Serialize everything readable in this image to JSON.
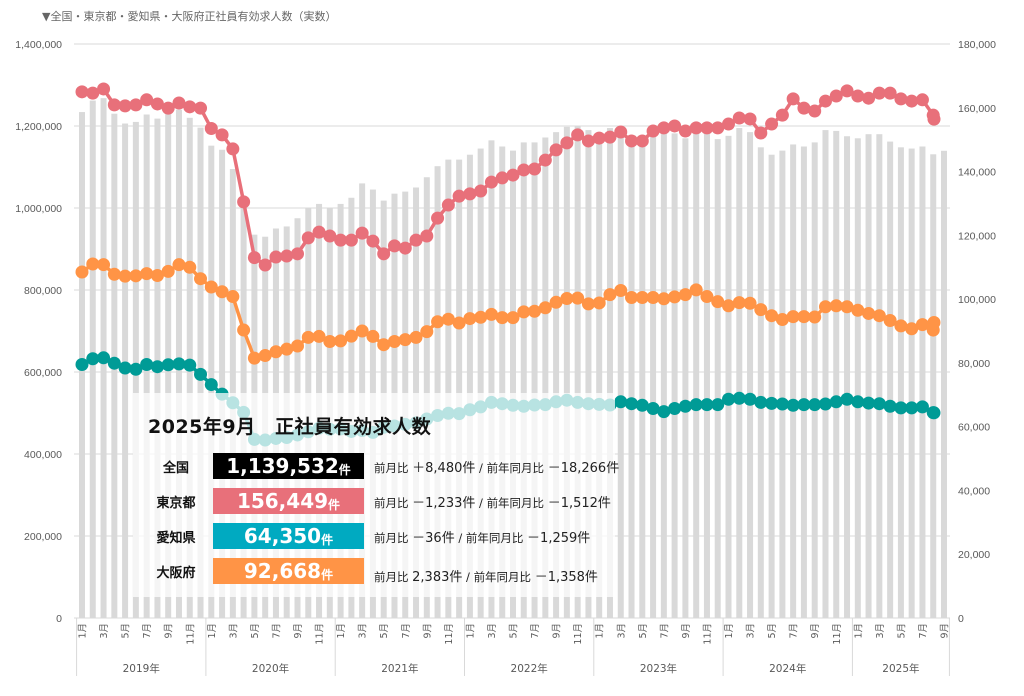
{
  "title": "▼全国・東京都・愛知県・大阪府正社員有効求人数（実数）",
  "colors": {
    "national": "#d9d9d9",
    "tokyo": "#e8707a",
    "aichi": "#009b96",
    "aichi_faded": "#b0dedc",
    "osaka": "#ff9446",
    "national_box": "#000000",
    "tokyo_box": "#e8707a",
    "aichi_box": "#00aac1",
    "osaka_box": "#ff9446",
    "grid": "#d9d9d9"
  },
  "summary": {
    "heading": "2025年9月　正社員有効求人数",
    "rows": [
      {
        "region": "全国",
        "value": "1,139,532",
        "unit": "件",
        "mom_label": "前月比",
        "mom": "＋8,480件",
        "sep": "/",
        "yoy_label": "前年同月比",
        "yoy": "－18,266件"
      },
      {
        "region": "東京都",
        "value": "156,449",
        "unit": "件",
        "mom_label": "前月比",
        "mom": "－1,233件",
        "sep": "/",
        "yoy_label": "前年同月比",
        "yoy": "－1,512件"
      },
      {
        "region": "愛知県",
        "value": "64,350",
        "unit": "件",
        "mom_label": "前月比",
        "mom": "－36件",
        "sep": "/",
        "yoy_label": "前年同月比",
        "yoy": "－1,259件"
      },
      {
        "region": "大阪府",
        "value": "92,668",
        "unit": "件",
        "mom_label": "前月比",
        "mom": "2,383件",
        "sep": "/",
        "yoy_label": "前年同月比",
        "yoy": "－1,358件"
      }
    ]
  },
  "chart_data": {
    "type": "bar+line",
    "title": "▼全国・東京都・愛知県・大阪府正社員有効求人数（実数）",
    "y_left": {
      "min": 0,
      "max": 1400000,
      "step": 200000,
      "ticks": [
        "0",
        "200,000",
        "400,000",
        "600,000",
        "800,000",
        "1,000,000",
        "1,200,000",
        "1,400,000"
      ]
    },
    "y_right": {
      "min": 0,
      "max": 180000,
      "step": 20000,
      "ticks": [
        "0",
        "20,000",
        "40,000",
        "60,000",
        "80,000",
        "100,000",
        "120,000",
        "140,000",
        "160,000",
        "180,000"
      ]
    },
    "grid": true,
    "years": [
      "2019年",
      "2020年",
      "2021年",
      "2022年",
      "2023年",
      "2024年",
      "2025年"
    ],
    "month_tick_labels": [
      "1月",
      "3月",
      "5月",
      "7月",
      "9月",
      "11月"
    ],
    "month_tick_labels_2025": [
      "1月",
      "3月",
      "5月",
      "7月",
      "9月"
    ],
    "months_count": 81,
    "series": [
      {
        "name": "全国",
        "axis": "left",
        "kind": "bar",
        "values": [
          1234000,
          1262000,
          1268000,
          1230000,
          1206000,
          1210000,
          1228000,
          1218000,
          1232000,
          1240000,
          1220000,
          1196000,
          1152000,
          1142000,
          1095000,
          1000000,
          935000,
          930000,
          950000,
          955000,
          975000,
          1000000,
          1010000,
          1000000,
          1010000,
          1025000,
          1060000,
          1045000,
          1018000,
          1035000,
          1040000,
          1050000,
          1075000,
          1102000,
          1118000,
          1118000,
          1130000,
          1145000,
          1165000,
          1150000,
          1140000,
          1160000,
          1160000,
          1172000,
          1185000,
          1198000,
          1200000,
          1190000,
          1182000,
          1195000,
          1185000,
          1160000,
          1170000,
          1185000,
          1190000,
          1182000,
          1170000,
          1186000,
          1188000,
          1168000,
          1176000,
          1195000,
          1185000,
          1148000,
          1130000,
          1140000,
          1155000,
          1150000,
          1160000,
          1190000,
          1188000,
          1175000,
          1170000,
          1180000,
          1180000,
          1162000,
          1148000,
          1145000,
          1150000,
          1131000,
          1139532
        ]
      },
      {
        "name": "東京都",
        "axis": "right",
        "kind": "line",
        "values": [
          165000,
          164600,
          165900,
          160900,
          160600,
          160900,
          162500,
          161200,
          159900,
          161500,
          160300,
          159900,
          153500,
          151500,
          147100,
          130500,
          113000,
          110700,
          113200,
          113500,
          114200,
          119200,
          121000,
          119800,
          118500,
          118500,
          120700,
          118200,
          114200,
          116700,
          116000,
          118500,
          119800,
          125400,
          129500,
          132300,
          133000,
          133900,
          136700,
          138000,
          138900,
          140500,
          140800,
          143600,
          146800,
          149000,
          151500,
          149600,
          150500,
          150800,
          152400,
          149600,
          149600,
          152700,
          153700,
          154300,
          152700,
          153700,
          153700,
          153700,
          154900,
          156800,
          156500,
          152100,
          154900,
          157700,
          162800,
          159900,
          159000,
          162100,
          163700,
          165300,
          163700,
          163000,
          164600,
          164600,
          162800,
          162100,
          162500,
          157682,
          156449
        ]
      },
      {
        "name": "愛知県",
        "axis": "right",
        "kind": "line",
        "values": [
          79500,
          81300,
          81600,
          79900,
          78400,
          78000,
          79500,
          78800,
          79400,
          79700,
          79300,
          76400,
          73200,
          70200,
          67500,
          64500,
          56000,
          55800,
          56300,
          56600,
          57400,
          58400,
          59500,
          59200,
          59300,
          58500,
          58800,
          58200,
          59800,
          60200,
          60700,
          61200,
          62400,
          63500,
          64200,
          64100,
          65300,
          66200,
          67600,
          67200,
          66700,
          66400,
          66800,
          66900,
          67800,
          68300,
          67600,
          67200,
          67000,
          66800,
          67800,
          67200,
          66700,
          65700,
          64700,
          65700,
          66400,
          66900,
          66900,
          66900,
          68600,
          68900,
          68600,
          67600,
          67300,
          67100,
          66700,
          66900,
          66900,
          67100,
          67800,
          68600,
          67800,
          67400,
          67200,
          66400,
          65900,
          65900,
          66200,
          64386,
          64350
        ]
      },
      {
        "name": "大阪府",
        "axis": "right",
        "kind": "line",
        "values": [
          108500,
          111000,
          110800,
          107800,
          107200,
          107300,
          108000,
          107400,
          108700,
          110800,
          110000,
          106400,
          103800,
          102300,
          100800,
          90300,
          81500,
          82300,
          83500,
          84300,
          85300,
          88000,
          88300,
          86700,
          86900,
          88400,
          90000,
          88300,
          85700,
          86700,
          87300,
          88000,
          89800,
          92900,
          93700,
          92500,
          93900,
          94300,
          95200,
          94200,
          94200,
          96000,
          96200,
          97300,
          99000,
          100200,
          100300,
          98500,
          98800,
          101400,
          102700,
          100500,
          100500,
          100500,
          100100,
          100700,
          101400,
          102900,
          100800,
          99200,
          97900,
          98900,
          98700,
          96700,
          94800,
          93600,
          94500,
          94500,
          94400,
          97600,
          97900,
          97600,
          96500,
          95500,
          94800,
          93300,
          91600,
          90700,
          92000,
          90285,
          92668
        ]
      }
    ]
  }
}
